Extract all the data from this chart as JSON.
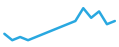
{
  "y": [
    6,
    4,
    5,
    4,
    5,
    6,
    7,
    8,
    9,
    10,
    14,
    11,
    13,
    9,
    10
  ],
  "line_color": "#29a8e0",
  "line_width": 1.8,
  "background_color": "#ffffff",
  "xlim": [
    -0.3,
    14.3
  ],
  "ylim": [
    2.5,
    16
  ]
}
